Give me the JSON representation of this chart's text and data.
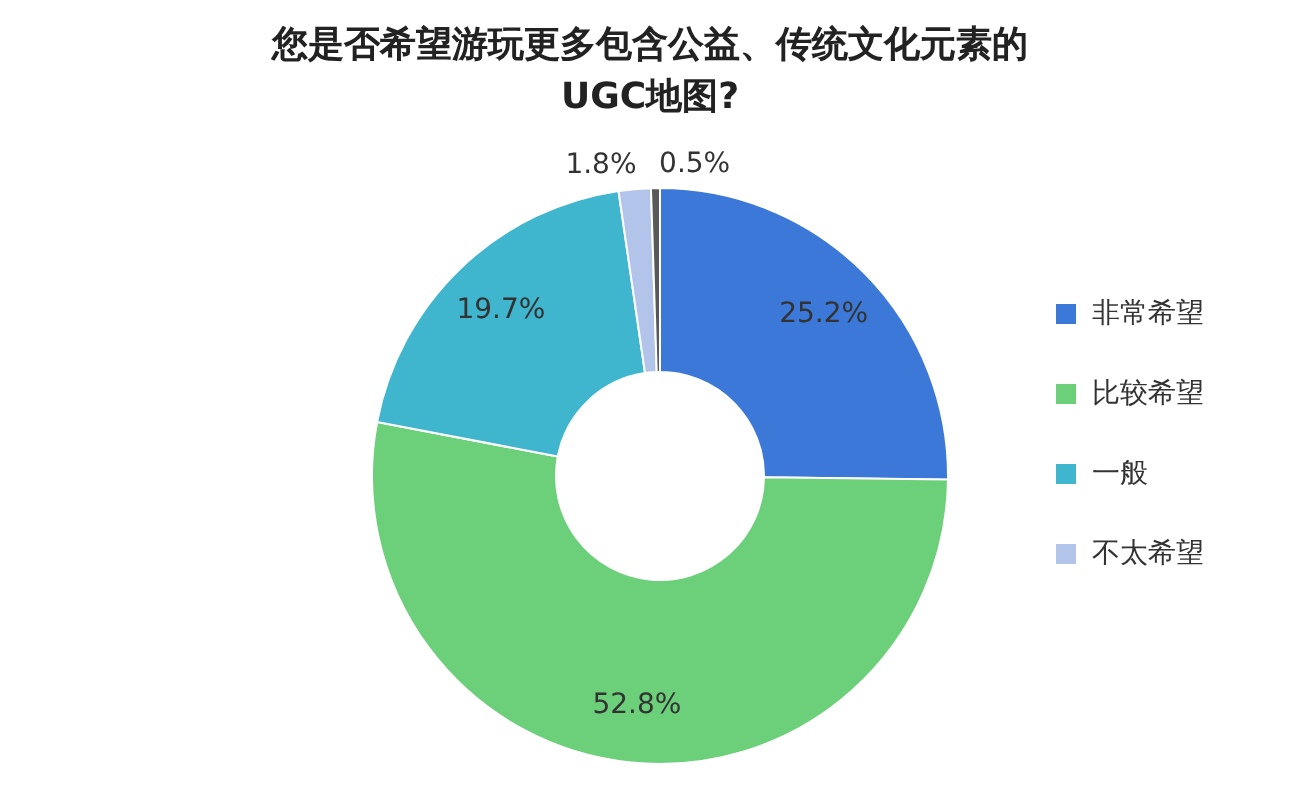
{
  "chart_data": {
    "type": "donut",
    "title": "您是否希望游玩更多包含公益、传统文化元素的UGC地图?",
    "categories": [
      "非常希望",
      "比较希望",
      "一般",
      "不太希望",
      null
    ],
    "values": [
      25.2,
      52.8,
      19.7,
      1.8,
      0.5
    ],
    "value_labels": [
      "25.2%",
      "52.8%",
      "19.7%",
      "1.8%",
      "0.5%"
    ],
    "colors": [
      "#3b78d8",
      "#6ccf79",
      "#3fb5ce",
      "#b3c4ea",
      "#595959"
    ],
    "legend": "right"
  }
}
